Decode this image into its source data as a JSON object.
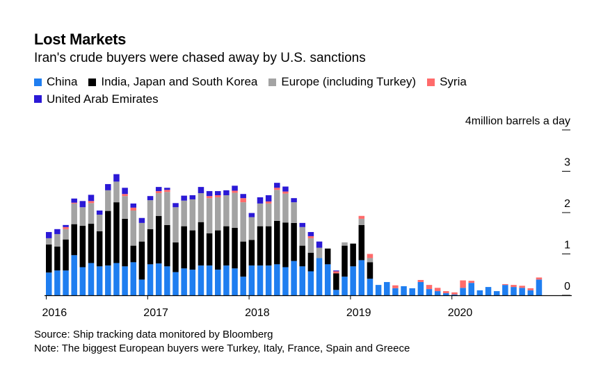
{
  "title": "Lost Markets",
  "subtitle": "Iran's crude buyers were chased away by U.S. sanctions",
  "source": "Source: Ship tracking data monitored by Bloomberg",
  "note": "Note: The biggest European buyers were Turkey, Italy, France, Spain and Greece",
  "chart_data": {
    "type": "bar",
    "stacked": true,
    "y_unit": "million barrels a day",
    "ylim": [
      0,
      4
    ],
    "yticks": [
      {
        "value": 0,
        "label": "0"
      },
      {
        "value": 1,
        "label": "1"
      },
      {
        "value": 2,
        "label": "2"
      },
      {
        "value": 3,
        "label": "3"
      },
      {
        "value": 4,
        "label": "4million barrels a day"
      }
    ],
    "xticks": [
      {
        "index": 0,
        "label": "2016"
      },
      {
        "index": 12,
        "label": "2017"
      },
      {
        "index": 24,
        "label": "2018"
      },
      {
        "index": 36,
        "label": "2019"
      },
      {
        "index": 48,
        "label": "2020"
      }
    ],
    "categories": [
      "2016-01",
      "2016-02",
      "2016-03",
      "2016-04",
      "2016-05",
      "2016-06",
      "2016-07",
      "2016-08",
      "2016-09",
      "2016-10",
      "2016-11",
      "2016-12",
      "2017-01",
      "2017-02",
      "2017-03",
      "2017-04",
      "2017-05",
      "2017-06",
      "2017-07",
      "2017-08",
      "2017-09",
      "2017-10",
      "2017-11",
      "2017-12",
      "2018-01",
      "2018-02",
      "2018-03",
      "2018-04",
      "2018-05",
      "2018-06",
      "2018-07",
      "2018-08",
      "2018-09",
      "2018-10",
      "2018-11",
      "2018-12",
      "2019-01",
      "2019-02",
      "2019-03",
      "2019-04",
      "2019-05",
      "2019-06",
      "2019-07",
      "2019-08",
      "2019-09",
      "2019-10",
      "2019-11",
      "2019-12",
      "2020-01",
      "2020-02",
      "2020-03",
      "2020-04",
      "2020-05",
      "2020-06",
      "2020-07",
      "2020-08",
      "2020-09",
      "2020-10",
      "2020-11",
      "2020-12"
    ],
    "series": [
      {
        "name": "China",
        "color": "#1f7ef0",
        "values": [
          0.55,
          0.6,
          0.6,
          0.97,
          0.68,
          0.78,
          0.7,
          0.72,
          0.78,
          0.7,
          0.8,
          0.38,
          0.75,
          0.77,
          0.7,
          0.56,
          0.65,
          0.62,
          0.72,
          0.72,
          0.62,
          0.72,
          0.65,
          0.45,
          0.72,
          0.72,
          0.72,
          0.75,
          0.68,
          0.83,
          0.7,
          0.58,
          0.9,
          0.75,
          0.13,
          0.45,
          0.7,
          0.85,
          0.4,
          0.25,
          0.32,
          0.17,
          0.22,
          0.17,
          0.32,
          0.15,
          0.1,
          0.05,
          0.02,
          0.18,
          0.3,
          0.12,
          0.2,
          0.1,
          0.25,
          0.2,
          0.18,
          0.12,
          0.38,
          0.0
        ]
      },
      {
        "name": "India, Japan and South Korea",
        "color": "#000000",
        "values": [
          0.68,
          0.58,
          0.75,
          0.75,
          1.0,
          0.95,
          0.85,
          1.32,
          1.47,
          1.15,
          0.4,
          0.92,
          0.85,
          1.15,
          1.0,
          0.72,
          1.02,
          0.95,
          1.05,
          0.78,
          0.95,
          0.95,
          0.98,
          0.85,
          0.62,
          0.95,
          0.95,
          1.05,
          1.08,
          0.92,
          0.5,
          0.45,
          0.0,
          0.38,
          0.4,
          0.75,
          0.55,
          0.85,
          0.4,
          0.0,
          0.0,
          0.0,
          0.0,
          0.0,
          0.0,
          0.0,
          0.0,
          0.0,
          0.0,
          0.0,
          0.0,
          0.0,
          0.0,
          0.0,
          0.0,
          0.0,
          0.0,
          0.0,
          0.0,
          0.0
        ]
      },
      {
        "name": "Europe (including Turkey)",
        "color": "#a3a3a3",
        "values": [
          0.15,
          0.3,
          0.25,
          0.5,
          0.45,
          0.5,
          0.4,
          0.5,
          0.5,
          0.55,
          0.85,
          0.45,
          0.7,
          0.55,
          0.8,
          0.85,
          0.62,
          0.75,
          0.7,
          0.85,
          0.8,
          0.75,
          0.85,
          0.95,
          0.55,
          0.55,
          0.55,
          0.75,
          0.7,
          0.5,
          0.45,
          0.35,
          0.25,
          0.0,
          0.0,
          0.08,
          0.0,
          0.15,
          0.1,
          0.0,
          0.0,
          0.0,
          0.0,
          0.0,
          0.0,
          0.0,
          0.0,
          0.0,
          0.0,
          0.0,
          0.0,
          0.0,
          0.0,
          0.0,
          0.0,
          0.0,
          0.0,
          0.0,
          0.0,
          0.0
        ]
      },
      {
        "name": "Syria",
        "color": "#ff6b6b",
        "values": [
          0.0,
          0.0,
          0.05,
          0.02,
          0.0,
          0.05,
          0.0,
          0.0,
          0.0,
          0.05,
          0.07,
          0.0,
          0.0,
          0.05,
          0.05,
          0.0,
          0.0,
          0.0,
          0.0,
          0.05,
          0.05,
          0.0,
          0.05,
          0.1,
          0.0,
          0.0,
          0.05,
          0.05,
          0.05,
          0.0,
          0.0,
          0.05,
          0.0,
          0.0,
          0.05,
          0.0,
          0.0,
          0.07,
          0.1,
          0.0,
          0.0,
          0.07,
          0.0,
          0.0,
          0.05,
          0.1,
          0.08,
          0.05,
          0.05,
          0.18,
          0.05,
          0.0,
          0.0,
          0.0,
          0.02,
          0.05,
          0.05,
          0.05,
          0.05,
          0.0
        ]
      },
      {
        "name": "United Arab Emirates",
        "color": "#2b19d6",
        "values": [
          0.15,
          0.12,
          0.05,
          0.1,
          0.15,
          0.15,
          0.1,
          0.15,
          0.18,
          0.15,
          0.1,
          0.12,
          0.1,
          0.1,
          0.05,
          0.1,
          0.12,
          0.1,
          0.15,
          0.12,
          0.1,
          0.12,
          0.12,
          0.1,
          0.1,
          0.15,
          0.15,
          0.12,
          0.12,
          0.1,
          0.1,
          0.1,
          0.15,
          0.0,
          0.02,
          0.0,
          0.0,
          0.0,
          0.0,
          0.0,
          0.0,
          0.0,
          0.0,
          0.0,
          0.0,
          0.0,
          0.0,
          0.0,
          0.0,
          0.0,
          0.0,
          0.0,
          0.0,
          0.0,
          0.0,
          0.0,
          0.0,
          0.0,
          0.0,
          0.0
        ]
      }
    ]
  }
}
